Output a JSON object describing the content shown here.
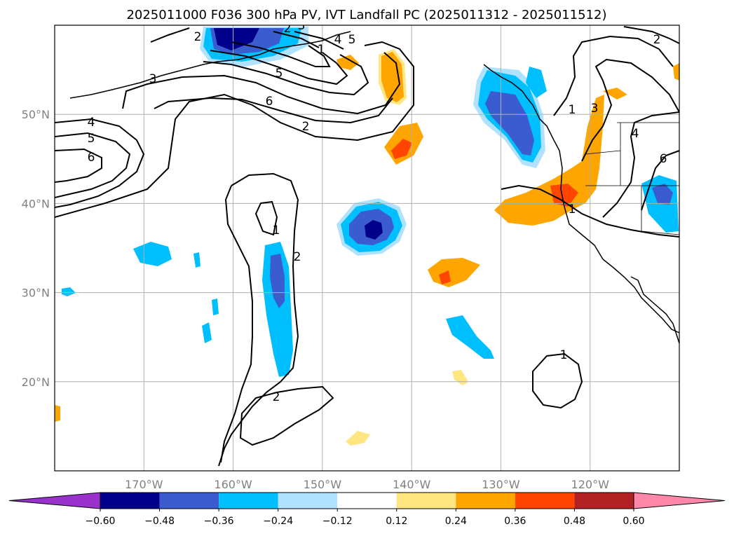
{
  "chart_data": {
    "type": "map-contour",
    "title": "2025011000 F036 300 hPa PV, IVT Landfall PC (2025011312 - 2025011512)",
    "projection": "plate-carree",
    "lon_range": [
      -180,
      -110
    ],
    "lat_range": [
      10,
      60
    ],
    "lon_ticks": [
      {
        "value": -170,
        "label": "170°W"
      },
      {
        "value": -160,
        "label": "160°W"
      },
      {
        "value": -150,
        "label": "150°W"
      },
      {
        "value": -140,
        "label": "140°W"
      },
      {
        "value": -130,
        "label": "130°W"
      },
      {
        "value": -120,
        "label": "120°W"
      }
    ],
    "lat_ticks": [
      {
        "value": 50,
        "label": "50°N"
      },
      {
        "value": 40,
        "label": "40°N"
      },
      {
        "value": 30,
        "label": "30°N"
      },
      {
        "value": 20,
        "label": "20°N"
      }
    ],
    "grid": true,
    "colorbar": {
      "orientation": "horizontal",
      "extend": "both",
      "boundaries": [
        -0.6,
        -0.48,
        -0.36,
        -0.24,
        -0.12,
        0.12,
        0.24,
        0.36,
        0.48,
        0.6
      ],
      "tick_labels": [
        "−0.60",
        "−0.48",
        "−0.36",
        "−0.24",
        "−0.12",
        "0.12",
        "0.24",
        "0.36",
        "0.48",
        "0.60"
      ],
      "colors": [
        "#9932cc",
        "#00008b",
        "#3a5ccf",
        "#00bfff",
        "#b0e2ff",
        "#ffffff",
        "#ffe680",
        "#ffa500",
        "#ff4500",
        "#b22222",
        "#ff88aa"
      ]
    },
    "contour_levels": [
      1,
      2,
      3,
      4,
      5,
      6
    ],
    "contour_labels": [
      "2",
      "3",
      "4",
      "5",
      "6",
      "5",
      "3",
      "2",
      "1",
      "4",
      "5",
      "6",
      "2",
      "1",
      "2",
      "2",
      "3",
      "4",
      "6",
      "1",
      "1",
      "1",
      "2"
    ]
  }
}
